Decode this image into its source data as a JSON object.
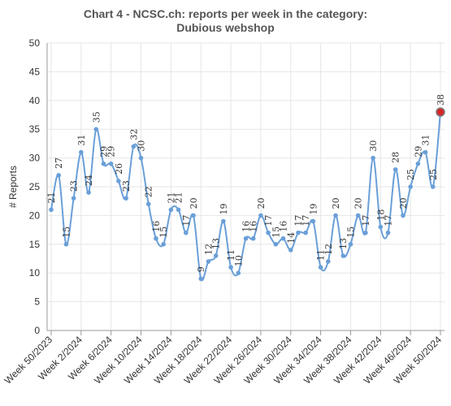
{
  "chart_data": {
    "type": "line",
    "title_line1": "Chart 4 - NCSC.ch: reports per week in the category:",
    "title_line2": "Dubious webshop",
    "ylabel": "# Reports",
    "ylim": [
      0,
      50
    ],
    "yticks": [
      0,
      5,
      10,
      15,
      20,
      25,
      30,
      35,
      40,
      45,
      50
    ],
    "grid": true,
    "legend": "none",
    "colors": {
      "line": "#6a9fd8",
      "point": "#6a9fd8",
      "last_point": "#d62728",
      "grid": "#e6e6e6"
    },
    "x_tick_labels": [
      "Week 50/2023",
      "Week 2/2024",
      "Week 6/2024",
      "Week 10/2024",
      "Week 14/2024",
      "Week 18/2024",
      "Week 22/2024",
      "Week 26/2024",
      "Week 30/2024",
      "Week 34/2024",
      "Week 38/2024",
      "Week 42/2024",
      "Week 46/2024",
      "Week 50/2024"
    ],
    "x_tick_indices": [
      0,
      4,
      8,
      12,
      16,
      20,
      24,
      28,
      32,
      36,
      40,
      44,
      48,
      52
    ],
    "values": [
      21,
      27,
      15,
      23,
      31,
      24,
      35,
      29,
      29,
      26,
      23,
      32,
      30,
      22,
      16,
      15,
      21,
      21,
      17,
      20,
      9,
      12,
      13,
      19,
      11,
      10,
      16,
      16,
      20,
      17,
      15,
      16,
      14,
      17,
      17,
      19,
      11,
      12,
      20,
      13,
      15,
      20,
      17,
      30,
      18,
      17,
      28,
      20,
      25,
      29,
      31,
      25,
      38
    ]
  }
}
